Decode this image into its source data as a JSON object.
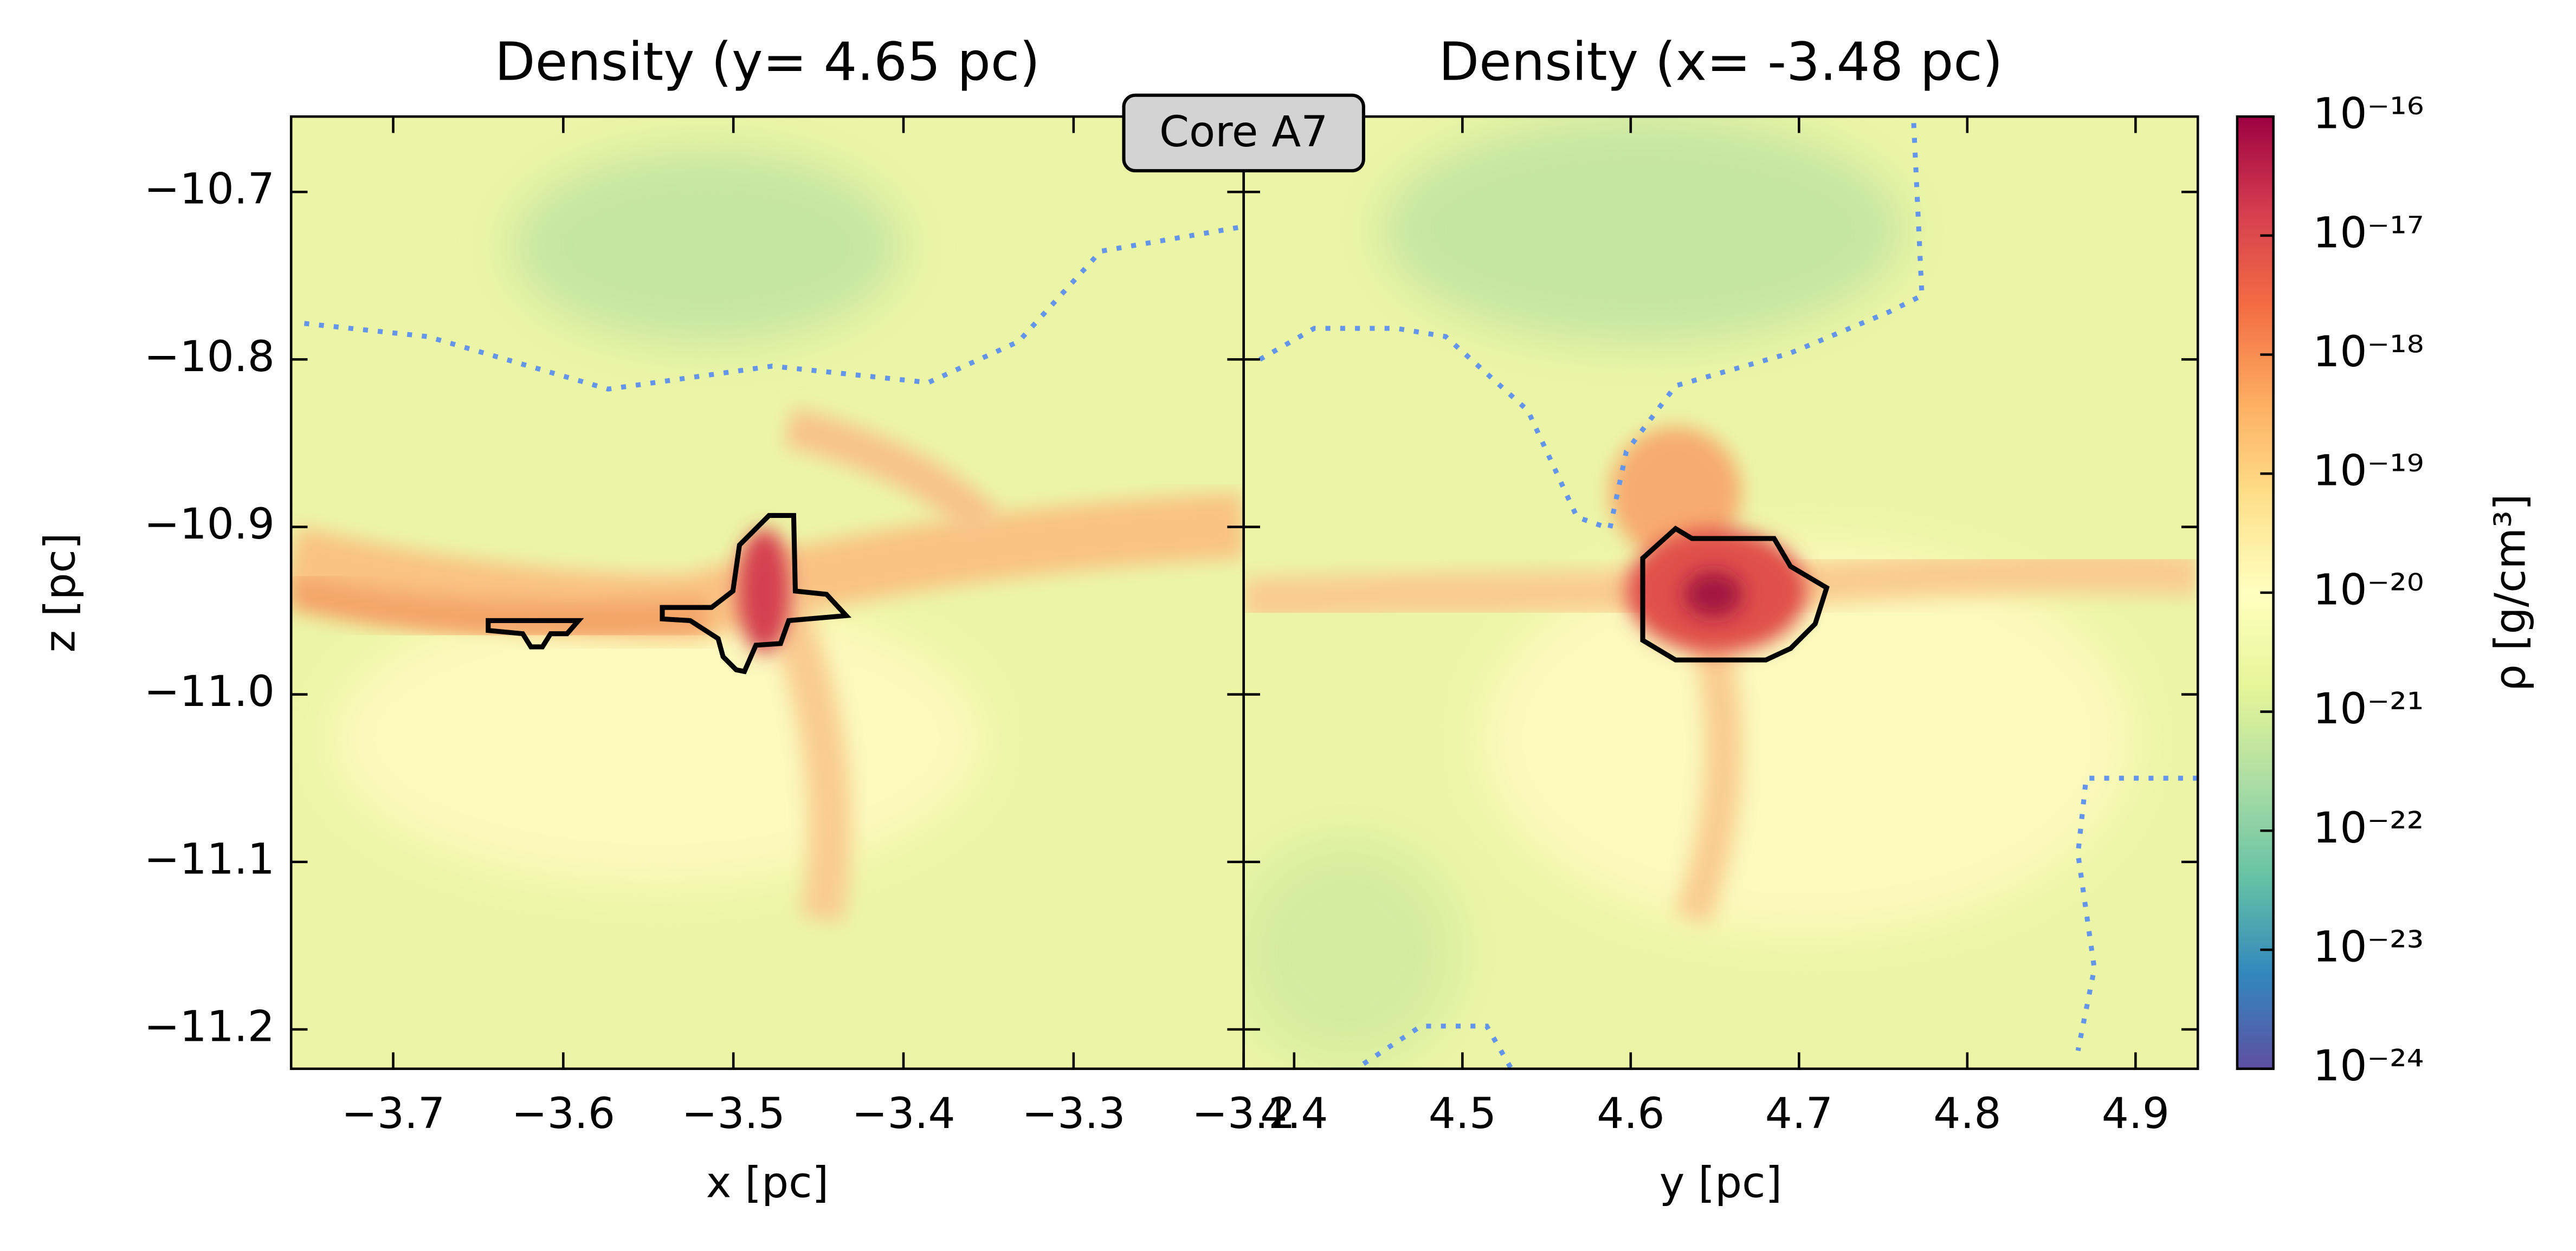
{
  "chart_data": [
    {
      "type": "heatmap",
      "title": "Density (y= 4.65 pc)",
      "xlabel": "x [pc]",
      "ylabel": "z [pc]",
      "xlim": [
        -3.76,
        -3.2
      ],
      "xticks": [
        {
          "value": -3.7,
          "label": "−3.7"
        },
        {
          "value": -3.6,
          "label": "−3.6"
        },
        {
          "value": -3.5,
          "label": "−3.5"
        },
        {
          "value": -3.4,
          "label": "−3.4"
        },
        {
          "value": -3.3,
          "label": "−3.3"
        },
        {
          "value": -3.2,
          "label": "−3.2"
        }
      ],
      "ylim": [
        -11.2235,
        -10.655
      ],
      "yticks": [
        {
          "value": -10.7,
          "label": "−10.7"
        },
        {
          "value": -10.8,
          "label": "−10.8"
        },
        {
          "value": -10.9,
          "label": "−10.9"
        },
        {
          "value": -11.0,
          "label": "−11.0"
        },
        {
          "value": -11.1,
          "label": "−11.1"
        },
        {
          "value": -11.2,
          "label": "−11.2"
        }
      ]
    },
    {
      "type": "heatmap",
      "title": "Density (x= -3.48 pc)",
      "xlabel": "y [pc]",
      "xlim": [
        4.37,
        4.937
      ],
      "xticks": [
        4.4,
        4.5,
        4.6,
        4.7,
        4.8,
        4.9
      ],
      "ylim": [
        -11.2235,
        -10.655
      ],
      "yticks": [
        -10.7,
        -10.8,
        -10.9,
        -11.0,
        -11.1,
        -11.2
      ]
    }
  ],
  "annotation": "Core A7",
  "colorbar": {
    "label": "ρ [g/cm³]",
    "scale": "log",
    "lim": [
      1e-24,
      1e-16
    ],
    "colors": [
      "#5e4fa2",
      "#3288bd",
      "#66c2a5",
      "#abdda4",
      "#e6f598",
      "#ffffbf",
      "#fee08b",
      "#fdae61",
      "#f46d43",
      "#d53e4f",
      "#9e0142"
    ],
    "ticks": [
      {
        "value": 1e-16,
        "label": "10⁻¹⁶"
      },
      {
        "value": 1e-17,
        "label": "10⁻¹⁷"
      },
      {
        "value": 1e-18,
        "label": "10⁻¹⁸"
      },
      {
        "value": 1e-19,
        "label": "10⁻¹⁹"
      },
      {
        "value": 1e-20,
        "label": "10⁻²⁰"
      },
      {
        "value": 1e-21,
        "label": "10⁻²¹"
      },
      {
        "value": 1e-22,
        "label": "10⁻²²"
      },
      {
        "value": 1e-23,
        "label": "10⁻²³"
      },
      {
        "value": 1e-24,
        "label": "10⁻²⁴"
      }
    ]
  }
}
